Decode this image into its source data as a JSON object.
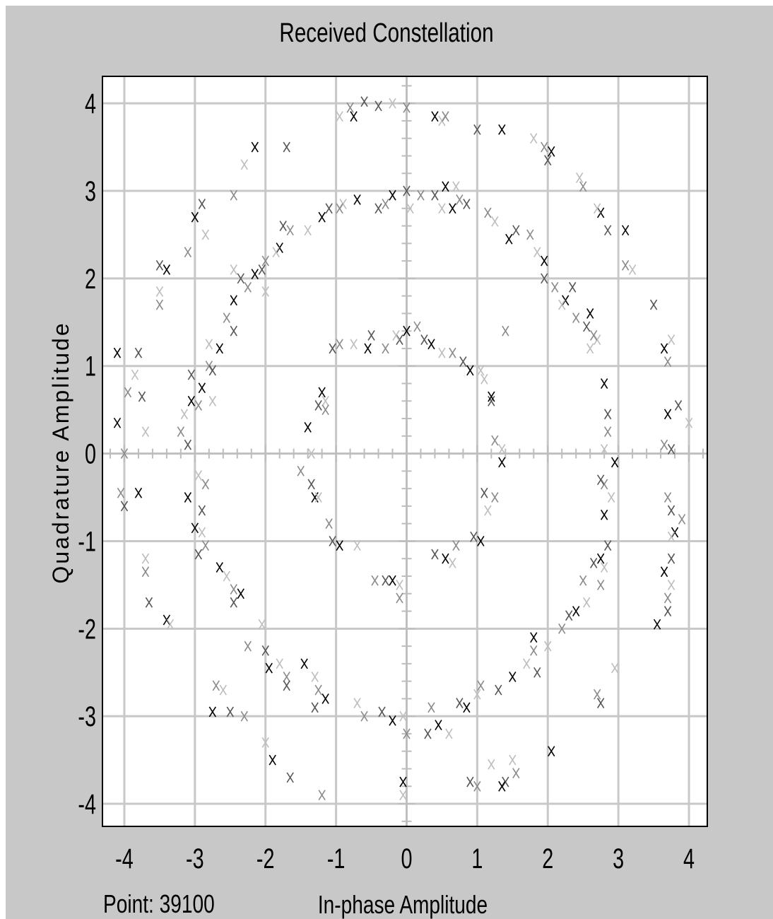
{
  "window": {
    "status_point_label": "Point: 39100"
  },
  "chart_data": {
    "type": "scatter",
    "title": "Received Constellation",
    "xlabel": "In-phase Amplitude",
    "ylabel": "Quadrature Amplitude",
    "xlim": [
      -4.3,
      4.25
    ],
    "ylim": [
      -4.25,
      4.3
    ],
    "x_ticks": [
      -4,
      -3,
      -2,
      -1,
      0,
      1,
      2,
      3,
      4
    ],
    "y_ticks": [
      -4,
      -3,
      -2,
      -1,
      0,
      1,
      2,
      3,
      4
    ],
    "x_tick_labels": [
      "-4",
      "-3",
      "-2",
      "-1",
      "0",
      "1",
      "2",
      "3",
      "4"
    ],
    "y_tick_labels": [
      "-4",
      "-3",
      "-2",
      "-1",
      "0",
      "1",
      "2",
      "3",
      "4"
    ],
    "grid": true,
    "marker": "x",
    "marker_colors": [
      "#000000",
      "#555555",
      "#8a8a8a",
      "#bdbdbd"
    ],
    "rings": [
      {
        "radius": 1.35,
        "center": [
          0,
          0
        ]
      },
      {
        "radius": 3.0,
        "center": [
          0,
          0
        ]
      },
      {
        "radius": 4.0,
        "center": [
          0,
          0
        ]
      }
    ],
    "points": [
      [
        -0.2,
        4.0
      ],
      [
        0.0,
        3.95
      ],
      [
        -0.4,
        3.97
      ],
      [
        -0.75,
        3.85
      ],
      [
        -0.95,
        3.85
      ],
      [
        -0.8,
        3.95
      ],
      [
        -0.6,
        4.02
      ],
      [
        0.4,
        3.85
      ],
      [
        0.5,
        3.8
      ],
      [
        0.55,
        3.85
      ],
      [
        1.0,
        3.7
      ],
      [
        1.35,
        3.7
      ],
      [
        1.8,
        3.6
      ],
      [
        1.95,
        3.5
      ],
      [
        2.0,
        3.35
      ],
      [
        2.05,
        3.45
      ],
      [
        2.45,
        3.15
      ],
      [
        2.5,
        3.05
      ],
      [
        -1.7,
        3.5
      ],
      [
        -2.15,
        3.5
      ],
      [
        -2.3,
        3.3
      ],
      [
        -2.45,
        2.95
      ],
      [
        -2.9,
        2.85
      ],
      [
        -3.0,
        2.7
      ],
      [
        -2.85,
        2.5
      ],
      [
        -3.1,
        2.3
      ],
      [
        -3.5,
        2.15
      ],
      [
        -3.4,
        2.1
      ],
      [
        -3.5,
        1.85
      ],
      [
        -3.5,
        1.7
      ],
      [
        -3.8,
        1.15
      ],
      [
        -4.1,
        1.15
      ],
      [
        -3.85,
        0.9
      ],
      [
        -3.95,
        0.7
      ],
      [
        -3.75,
        0.65
      ],
      [
        -4.1,
        0.35
      ],
      [
        -3.7,
        0.25
      ],
      [
        -4.0,
        0.0
      ],
      [
        3.5,
        1.7
      ],
      [
        3.65,
        1.2
      ],
      [
        3.75,
        1.3
      ],
      [
        3.7,
        1.05
      ],
      [
        3.85,
        0.55
      ],
      [
        3.7,
        0.45
      ],
      [
        4.0,
        0.35
      ],
      [
        3.65,
        0.1
      ],
      [
        3.75,
        0.05
      ],
      [
        3.1,
        2.55
      ],
      [
        3.2,
        2.1
      ],
      [
        3.1,
        2.15
      ],
      [
        2.85,
        2.55
      ],
      [
        2.75,
        2.75
      ],
      [
        2.7,
        2.8
      ],
      [
        -4.05,
        -0.45
      ],
      [
        -4.0,
        -0.6
      ],
      [
        -3.8,
        -0.45
      ],
      [
        -3.7,
        -1.2
      ],
      [
        -3.7,
        -1.35
      ],
      [
        -3.65,
        -1.7
      ],
      [
        -3.4,
        -1.9
      ],
      [
        -3.35,
        -1.95
      ],
      [
        3.7,
        -0.5
      ],
      [
        3.75,
        -0.65
      ],
      [
        3.8,
        -0.9
      ],
      [
        3.75,
        -0.95
      ],
      [
        3.9,
        -0.75
      ],
      [
        3.75,
        -1.2
      ],
      [
        3.65,
        -1.35
      ],
      [
        3.75,
        -1.5
      ],
      [
        3.7,
        -1.65
      ],
      [
        3.7,
        -1.8
      ],
      [
        3.55,
        -1.95
      ],
      [
        2.95,
        -2.45
      ],
      [
        2.7,
        -2.75
      ],
      [
        2.75,
        -2.85
      ],
      [
        2.05,
        -3.4
      ],
      [
        1.5,
        -3.5
      ],
      [
        1.55,
        -3.65
      ],
      [
        1.4,
        -3.75
      ],
      [
        1.35,
        -3.8
      ],
      [
        1.2,
        -3.55
      ],
      [
        1.0,
        -3.8
      ],
      [
        0.9,
        -3.75
      ],
      [
        -0.05,
        -3.75
      ],
      [
        -0.05,
        -3.9
      ],
      [
        -1.2,
        -3.9
      ],
      [
        -1.65,
        -3.7
      ],
      [
        -1.9,
        -3.5
      ],
      [
        -2.0,
        -3.3
      ],
      [
        -2.3,
        -3.0
      ],
      [
        -2.5,
        -2.95
      ],
      [
        -2.75,
        -2.95
      ],
      [
        -2.6,
        -2.7
      ],
      [
        -2.7,
        -2.65
      ],
      [
        0.0,
        3.0
      ],
      [
        -0.2,
        2.95
      ],
      [
        0.05,
        2.8
      ],
      [
        0.2,
        2.95
      ],
      [
        0.4,
        2.95
      ],
      [
        0.55,
        3.05
      ],
      [
        0.7,
        3.05
      ],
      [
        0.75,
        2.9
      ],
      [
        0.85,
        2.85
      ],
      [
        0.65,
        2.8
      ],
      [
        0.5,
        2.8
      ],
      [
        -0.3,
        2.85
      ],
      [
        -0.4,
        2.8
      ],
      [
        -0.7,
        2.9
      ],
      [
        -0.9,
        2.85
      ],
      [
        -0.95,
        2.8
      ],
      [
        -1.1,
        2.8
      ],
      [
        -1.2,
        2.7
      ],
      [
        -1.4,
        2.55
      ],
      [
        -1.65,
        2.55
      ],
      [
        -1.75,
        2.6
      ],
      [
        -1.8,
        2.35
      ],
      [
        -1.85,
        2.3
      ],
      [
        -2.0,
        2.2
      ],
      [
        -2.05,
        2.1
      ],
      [
        -2.15,
        2.05
      ],
      [
        -2.0,
        1.85
      ],
      [
        -2.25,
        1.9
      ],
      [
        -2.35,
        2.0
      ],
      [
        -2.45,
        1.75
      ],
      [
        -2.45,
        2.1
      ],
      [
        -2.55,
        1.55
      ],
      [
        -2.45,
        1.4
      ],
      [
        -2.65,
        1.2
      ],
      [
        -2.8,
        1.25
      ],
      [
        -2.8,
        1.0
      ],
      [
        -2.75,
        0.95
      ],
      [
        -2.9,
        0.75
      ],
      [
        -2.75,
        0.6
      ],
      [
        -2.95,
        0.55
      ],
      [
        -3.05,
        0.9
      ],
      [
        -3.05,
        0.6
      ],
      [
        -3.15,
        0.45
      ],
      [
        -3.2,
        0.25
      ],
      [
        -3.1,
        0.1
      ],
      [
        -3.1,
        -0.5
      ],
      [
        -2.95,
        -0.25
      ],
      [
        -2.85,
        -0.35
      ],
      [
        -2.9,
        -0.65
      ],
      [
        -3.0,
        -0.85
      ],
      [
        -2.9,
        -0.9
      ],
      [
        -2.85,
        -1.05
      ],
      [
        -2.95,
        -1.15
      ],
      [
        -2.65,
        -1.3
      ],
      [
        -2.55,
        -1.4
      ],
      [
        -2.45,
        -1.55
      ],
      [
        -2.45,
        -1.7
      ],
      [
        -2.35,
        -1.6
      ],
      [
        -2.05,
        -1.95
      ],
      [
        -2.25,
        -2.2
      ],
      [
        -2.0,
        -2.25
      ],
      [
        -1.95,
        -2.45
      ],
      [
        -1.8,
        -2.4
      ],
      [
        -1.7,
        -2.55
      ],
      [
        -1.7,
        -2.65
      ],
      [
        -1.45,
        -2.4
      ],
      [
        -1.3,
        -2.55
      ],
      [
        -1.25,
        -2.7
      ],
      [
        -1.3,
        -2.9
      ],
      [
        -1.15,
        -2.8
      ],
      [
        -0.7,
        -2.85
      ],
      [
        -0.6,
        -3.0
      ],
      [
        -0.35,
        -2.95
      ],
      [
        -0.2,
        -3.05
      ],
      [
        -0.05,
        -3.0
      ],
      [
        0.0,
        -3.2
      ],
      [
        0.3,
        -3.2
      ],
      [
        0.45,
        -3.1
      ],
      [
        0.6,
        -3.2
      ],
      [
        0.35,
        -2.9
      ],
      [
        0.75,
        -2.85
      ],
      [
        0.85,
        -2.9
      ],
      [
        1.0,
        -2.75
      ],
      [
        1.05,
        -2.65
      ],
      [
        1.3,
        -2.7
      ],
      [
        1.5,
        -2.55
      ],
      [
        1.7,
        -2.4
      ],
      [
        1.8,
        -2.25
      ],
      [
        1.85,
        -2.5
      ],
      [
        1.8,
        -2.1
      ],
      [
        2.0,
        -2.2
      ],
      [
        2.2,
        -2.0
      ],
      [
        2.3,
        -1.85
      ],
      [
        2.4,
        -1.8
      ],
      [
        2.55,
        -1.7
      ],
      [
        2.5,
        -1.45
      ],
      [
        2.65,
        -1.25
      ],
      [
        2.75,
        -1.2
      ],
      [
        2.8,
        -1.3
      ],
      [
        2.75,
        -1.5
      ],
      [
        2.85,
        -1.05
      ],
      [
        2.8,
        -0.7
      ],
      [
        2.9,
        -0.5
      ],
      [
        2.8,
        -0.35
      ],
      [
        2.75,
        -0.3
      ],
      [
        2.95,
        -0.1
      ],
      [
        2.8,
        0.05
      ],
      [
        2.85,
        0.25
      ],
      [
        2.85,
        0.45
      ],
      [
        2.8,
        0.8
      ],
      [
        2.7,
        1.3
      ],
      [
        2.65,
        1.35
      ],
      [
        2.55,
        1.45
      ],
      [
        2.6,
        1.6
      ],
      [
        2.6,
        1.2
      ],
      [
        2.4,
        1.55
      ],
      [
        2.35,
        1.9
      ],
      [
        2.25,
        1.75
      ],
      [
        2.2,
        1.7
      ],
      [
        2.1,
        1.9
      ],
      [
        1.95,
        2.0
      ],
      [
        1.95,
        2.2
      ],
      [
        1.85,
        2.3
      ],
      [
        1.75,
        2.5
      ],
      [
        1.55,
        2.55
      ],
      [
        1.45,
        2.45
      ],
      [
        1.25,
        2.65
      ],
      [
        1.15,
        2.75
      ],
      [
        -0.1,
        1.3
      ],
      [
        0.0,
        1.4
      ],
      [
        -0.15,
        1.35
      ],
      [
        0.15,
        1.45
      ],
      [
        0.25,
        1.3
      ],
      [
        0.35,
        1.25
      ],
      [
        0.5,
        1.15
      ],
      [
        0.65,
        1.15
      ],
      [
        0.8,
        1.05
      ],
      [
        0.9,
        0.95
      ],
      [
        1.05,
        0.95
      ],
      [
        -0.3,
        1.2
      ],
      [
        -0.5,
        1.35
      ],
      [
        -0.55,
        1.2
      ],
      [
        -0.75,
        1.25
      ],
      [
        -0.95,
        1.25
      ],
      [
        -1.05,
        1.2
      ],
      [
        -1.2,
        0.7
      ],
      [
        -1.15,
        0.6
      ],
      [
        -1.15,
        0.5
      ],
      [
        -1.25,
        0.55
      ],
      [
        -1.4,
        0.3
      ],
      [
        -1.35,
        0.0
      ],
      [
        -1.5,
        -0.2
      ],
      [
        -1.35,
        -0.35
      ],
      [
        -1.3,
        -0.5
      ],
      [
        -1.25,
        -0.5
      ],
      [
        -1.1,
        -0.8
      ],
      [
        -1.05,
        -1.0
      ],
      [
        -0.95,
        -1.05
      ],
      [
        -0.7,
        -1.05
      ],
      [
        -0.45,
        -1.45
      ],
      [
        -0.3,
        -1.45
      ],
      [
        -0.2,
        -1.45
      ],
      [
        -0.1,
        -1.5
      ],
      [
        -0.1,
        -1.65
      ],
      [
        0.4,
        -1.15
      ],
      [
        0.55,
        -1.2
      ],
      [
        0.65,
        -1.25
      ],
      [
        0.7,
        -1.05
      ],
      [
        0.95,
        -0.95
      ],
      [
        1.05,
        -1.0
      ],
      [
        1.15,
        -0.65
      ],
      [
        1.25,
        -0.5
      ],
      [
        1.1,
        -0.45
      ],
      [
        1.35,
        -0.1
      ],
      [
        1.35,
        0.05
      ],
      [
        1.25,
        0.15
      ],
      [
        1.2,
        0.6
      ],
      [
        1.2,
        0.65
      ],
      [
        1.1,
        0.85
      ],
      [
        1.4,
        1.4
      ]
    ]
  }
}
